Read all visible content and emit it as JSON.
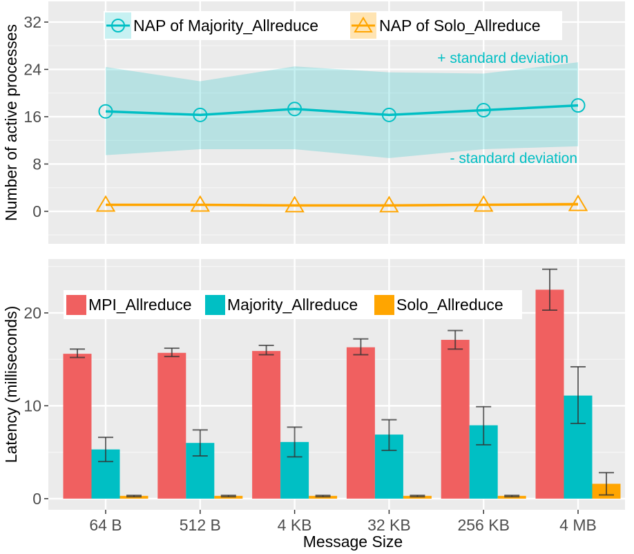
{
  "figure": {
    "x_axis_title": "Message Size"
  },
  "chart_data": [
    {
      "type": "line",
      "ylabel": "Number of active processes",
      "ylim": [
        -5.5,
        35.5
      ],
      "yticks": [
        0,
        8,
        16,
        24,
        32
      ],
      "categories": [
        "64 B",
        "512 B",
        "4 KB",
        "32 KB",
        "256 KB",
        "4 MB"
      ],
      "grid": true,
      "legend_position": "top",
      "series": [
        {
          "name": "NAP of Majority_Allreduce",
          "values": [
            16.9,
            16.3,
            17.3,
            16.3,
            17.1,
            17.9
          ],
          "upper": [
            24.4,
            22.0,
            24.5,
            23.5,
            23.3,
            25.2
          ],
          "lower": [
            9.5,
            10.5,
            10.5,
            9.0,
            10.5,
            11.0
          ],
          "color": "#00bfc4",
          "marker": "circle"
        },
        {
          "name": "NAP of Solo_Allreduce",
          "values": [
            1.1,
            1.1,
            1.0,
            1.0,
            1.1,
            1.2
          ],
          "upper": [
            1.3,
            1.3,
            1.2,
            1.2,
            1.3,
            1.5
          ],
          "lower": [
            0.9,
            0.9,
            0.8,
            0.8,
            0.9,
            0.9
          ],
          "color": "#ffa500",
          "marker": "triangle"
        }
      ],
      "annotations": [
        {
          "text": "+ standard deviation",
          "color": "#00bfc4"
        },
        {
          "text": "- standard deviation",
          "color": "#00bfc4"
        }
      ]
    },
    {
      "type": "bar",
      "xlabel": "Message Size",
      "ylabel": "Latency (milliseconds)",
      "ylim": [
        -1.2,
        25.8
      ],
      "yticks": [
        0,
        10,
        20
      ],
      "categories": [
        "64 B",
        "512 B",
        "4 KB",
        "32 KB",
        "256 KB",
        "4 MB"
      ],
      "grid": true,
      "legend_position": "top",
      "series": [
        {
          "name": "MPI_Allreduce",
          "values": [
            15.6,
            15.7,
            15.9,
            16.3,
            17.1,
            22.5
          ],
          "err_low": [
            15.2,
            15.3,
            15.5,
            15.5,
            16.1,
            20.3
          ],
          "err_high": [
            16.1,
            16.2,
            16.5,
            17.2,
            18.1,
            24.7
          ],
          "color": "#f06060"
        },
        {
          "name": "Majority_Allreduce",
          "values": [
            5.3,
            6.0,
            6.1,
            6.9,
            7.9,
            11.1
          ],
          "err_low": [
            4.0,
            4.6,
            4.5,
            5.2,
            5.8,
            8.1
          ],
          "err_high": [
            6.6,
            7.4,
            7.7,
            8.5,
            9.9,
            14.2
          ],
          "color": "#00bfc4"
        },
        {
          "name": "Solo_Allreduce",
          "values": [
            0.3,
            0.3,
            0.3,
            0.3,
            0.3,
            1.6
          ],
          "err_low": [
            0.2,
            0.2,
            0.2,
            0.2,
            0.2,
            0.4
          ],
          "err_high": [
            0.35,
            0.35,
            0.35,
            0.35,
            0.35,
            2.8
          ],
          "color": "#ffa500"
        }
      ]
    }
  ]
}
